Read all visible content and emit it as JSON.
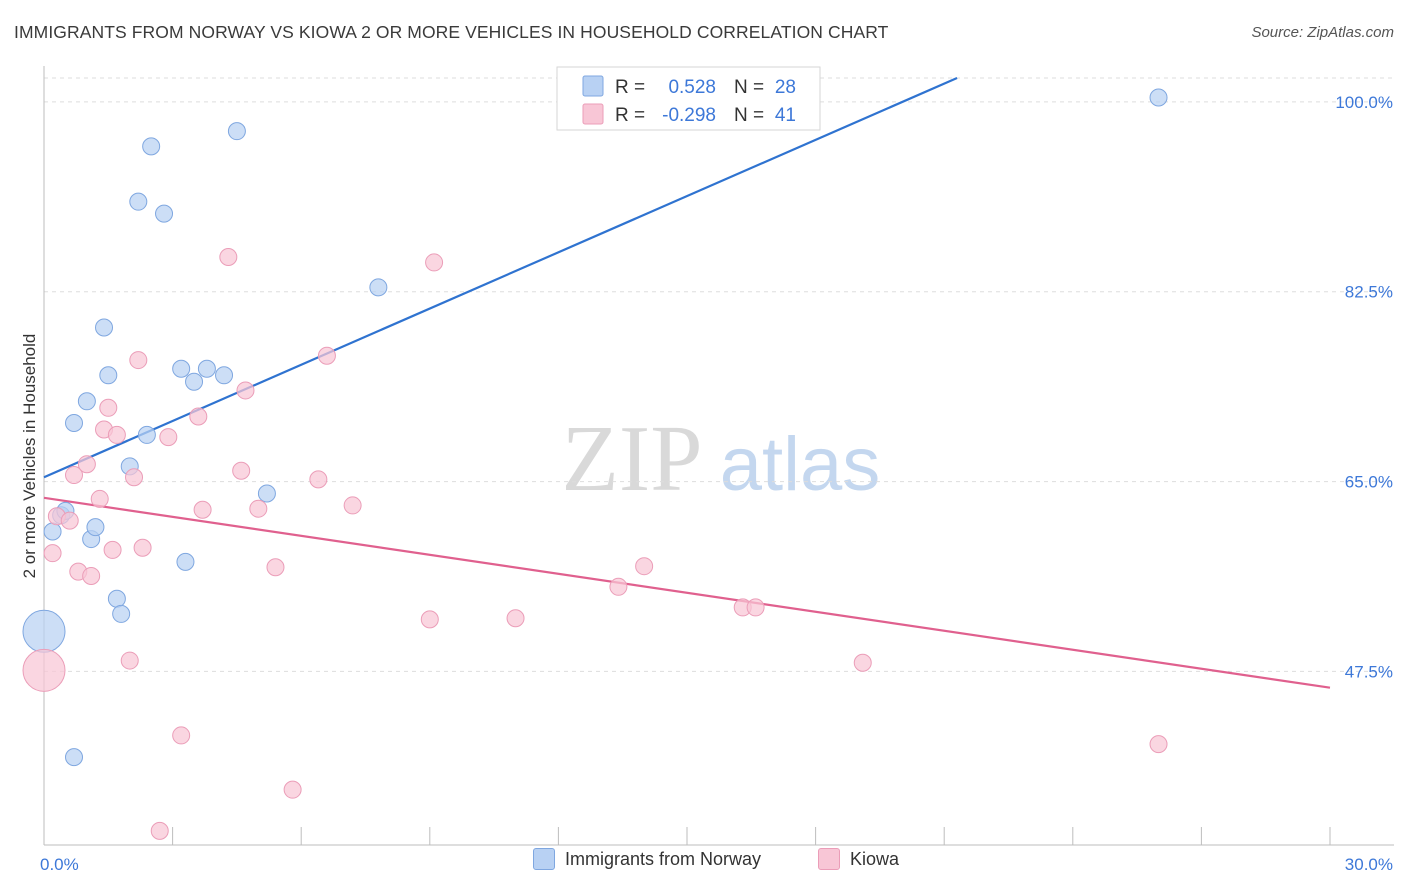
{
  "title": "IMMIGRANTS FROM NORWAY VS KIOWA 2 OR MORE VEHICLES IN HOUSEHOLD CORRELATION CHART",
  "source": "Source: ZipAtlas.com",
  "watermark": {
    "zip": "ZIP",
    "atlas": "atlas"
  },
  "colors": {
    "blue": "#2f73d0",
    "blue_fill": "#b8d1f3",
    "blue_stroke": "#7fa7e0",
    "pink": "#e0608e",
    "pink_fill": "#f8c6d6",
    "pink_stroke": "#eb9db8",
    "tick_label": "#3d78d8",
    "grid": "#dddddd"
  },
  "legend": {
    "rows": [
      {
        "r_label": "R =",
        "r_value": "0.528",
        "n_label": "N =",
        "n_value": "28",
        "color": "blue"
      },
      {
        "r_label": "R =",
        "r_value": "-0.298",
        "n_label": "N =",
        "n_value": "41",
        "color": "pink"
      }
    ]
  },
  "bottom_legend": [
    {
      "label": "Immigrants from Norway",
      "color": "blue"
    },
    {
      "label": "Kiowa",
      "color": "pink"
    }
  ],
  "chart_data": {
    "type": "scatter",
    "title": "IMMIGRANTS FROM NORWAY VS KIOWA 2 OR MORE VEHICLES IN HOUSEHOLD CORRELATION CHART",
    "xlabel": "",
    "ylabel": "2 or more Vehicles in Household",
    "xlim": [
      0,
      30
    ],
    "ylim": [
      31.5,
      102.2
    ],
    "x_ticks": [
      0,
      3,
      6,
      9,
      12,
      15,
      18,
      21,
      24,
      27,
      30
    ],
    "x_tick_labels": [
      {
        "value": 0,
        "label": "0.0%"
      },
      {
        "value": 30,
        "label": "30.0%"
      }
    ],
    "y_ticks": [
      47.5,
      65.0,
      82.5,
      100.0
    ],
    "y_tick_labels": [
      "47.5%",
      "65.0%",
      "82.5%",
      "100.0%"
    ],
    "grid": "horizontal dashed",
    "legend_position": "top-center",
    "series": [
      {
        "name": "Immigrants from Norway",
        "color": "blue",
        "points": [
          {
            "x": 0.0,
            "y": 51.2,
            "big": true
          },
          {
            "x": 0.2,
            "y": 60.4
          },
          {
            "x": 0.4,
            "y": 61.9
          },
          {
            "x": 0.5,
            "y": 62.3
          },
          {
            "x": 0.7,
            "y": 39.6
          },
          {
            "x": 0.7,
            "y": 70.4
          },
          {
            "x": 1.0,
            "y": 72.4
          },
          {
            "x": 1.1,
            "y": 59.7
          },
          {
            "x": 1.2,
            "y": 60.8
          },
          {
            "x": 1.4,
            "y": 79.2
          },
          {
            "x": 1.5,
            "y": 74.8
          },
          {
            "x": 1.7,
            "y": 54.2
          },
          {
            "x": 1.8,
            "y": 52.8
          },
          {
            "x": 2.0,
            "y": 66.4
          },
          {
            "x": 2.2,
            "y": 90.8
          },
          {
            "x": 2.4,
            "y": 69.3
          },
          {
            "x": 2.5,
            "y": 95.9
          },
          {
            "x": 2.8,
            "y": 89.7
          },
          {
            "x": 3.2,
            "y": 75.4
          },
          {
            "x": 3.3,
            "y": 57.6
          },
          {
            "x": 3.5,
            "y": 74.2
          },
          {
            "x": 3.8,
            "y": 75.4
          },
          {
            "x": 4.2,
            "y": 74.8
          },
          {
            "x": 4.5,
            "y": 97.3
          },
          {
            "x": 5.2,
            "y": 63.9
          },
          {
            "x": 7.8,
            "y": 82.9
          },
          {
            "x": 26.0,
            "y": 100.4
          }
        ],
        "trend": {
          "x1": 0,
          "y1": 65.4,
          "x2": 21.3,
          "y2": 102.2
        }
      },
      {
        "name": "Kiowa",
        "color": "pink",
        "points": [
          {
            "x": 0.0,
            "y": 47.6,
            "big": true
          },
          {
            "x": 0.2,
            "y": 58.4
          },
          {
            "x": 0.3,
            "y": 61.8
          },
          {
            "x": 0.6,
            "y": 61.4
          },
          {
            "x": 0.7,
            "y": 65.6
          },
          {
            "x": 0.8,
            "y": 56.7
          },
          {
            "x": 1.0,
            "y": 66.6
          },
          {
            "x": 1.1,
            "y": 56.3
          },
          {
            "x": 1.3,
            "y": 63.4
          },
          {
            "x": 1.4,
            "y": 69.8
          },
          {
            "x": 1.5,
            "y": 71.8
          },
          {
            "x": 1.6,
            "y": 58.7
          },
          {
            "x": 1.7,
            "y": 69.3
          },
          {
            "x": 2.0,
            "y": 48.5
          },
          {
            "x": 2.1,
            "y": 65.4
          },
          {
            "x": 2.2,
            "y": 76.2
          },
          {
            "x": 2.3,
            "y": 58.9
          },
          {
            "x": 2.7,
            "y": 32.8
          },
          {
            "x": 2.9,
            "y": 69.1
          },
          {
            "x": 3.2,
            "y": 41.6
          },
          {
            "x": 3.6,
            "y": 71.0
          },
          {
            "x": 3.7,
            "y": 62.4
          },
          {
            "x": 4.3,
            "y": 85.7
          },
          {
            "x": 4.6,
            "y": 66.0
          },
          {
            "x": 4.7,
            "y": 73.4
          },
          {
            "x": 5.0,
            "y": 62.5
          },
          {
            "x": 5.4,
            "y": 57.1
          },
          {
            "x": 5.8,
            "y": 36.6
          },
          {
            "x": 6.4,
            "y": 65.2
          },
          {
            "x": 6.6,
            "y": 76.6
          },
          {
            "x": 7.2,
            "y": 62.8
          },
          {
            "x": 9.0,
            "y": 52.3
          },
          {
            "x": 9.1,
            "y": 85.2
          },
          {
            "x": 11.0,
            "y": 52.4
          },
          {
            "x": 13.4,
            "y": 55.3
          },
          {
            "x": 14.0,
            "y": 57.2
          },
          {
            "x": 16.3,
            "y": 53.4
          },
          {
            "x": 16.6,
            "y": 53.4
          },
          {
            "x": 19.1,
            "y": 48.3
          },
          {
            "x": 26.0,
            "y": 40.8
          }
        ],
        "trend": {
          "x1": 0,
          "y1": 63.5,
          "x2": 30,
          "y2": 46.0
        }
      }
    ]
  }
}
